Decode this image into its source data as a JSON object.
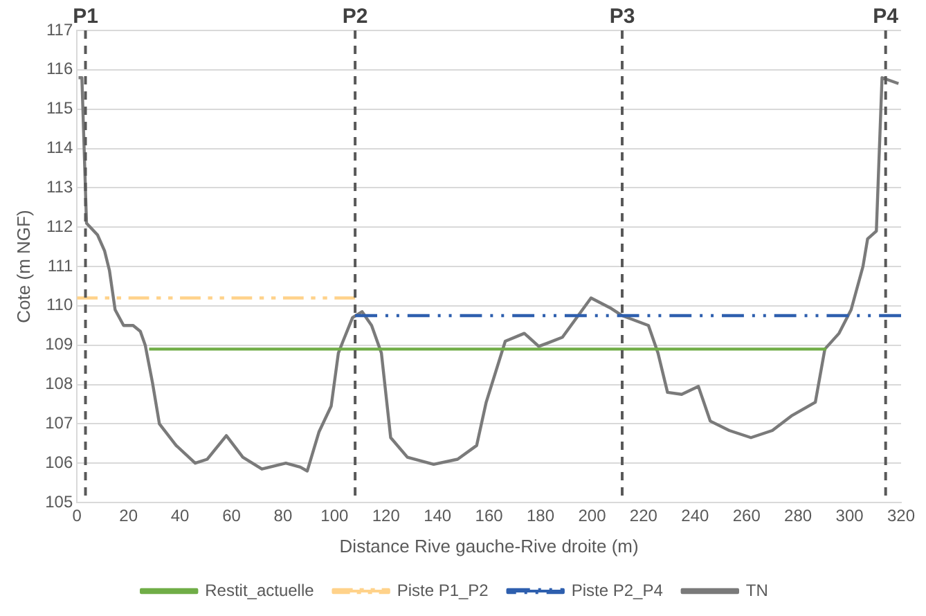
{
  "chart_data": {
    "type": "line",
    "xlabel": "Distance Rive gauche-Rive droite (m)",
    "ylabel": "Cote (m NGF)",
    "xlim": [
      0,
      320
    ],
    "xticks": [
      0,
      20,
      40,
      60,
      80,
      100,
      120,
      140,
      160,
      180,
      200,
      220,
      240,
      260,
      280,
      300,
      320
    ],
    "ylim": [
      105,
      117
    ],
    "yticks": [
      105,
      106,
      107,
      108,
      109,
      110,
      111,
      112,
      113,
      114,
      115,
      116,
      117
    ],
    "grid": "y",
    "legend": "bottom",
    "marker": "none",
    "series": [
      {
        "name": "Restit_actuelle",
        "color": "#70ad47",
        "line_style": "solid",
        "x": [
          28,
          291
        ],
        "values": [
          108.9,
          108.9
        ]
      },
      {
        "name": "Piste P1_P2",
        "color": "#ffd28a",
        "line_style": "dashed",
        "x": [
          0,
          108
        ],
        "values": [
          110.2,
          110.2
        ]
      },
      {
        "name": "Piste P2_P4",
        "color": "#2e5fae",
        "line_style": "dotted",
        "x": [
          108,
          320
        ],
        "values": [
          109.75,
          109.75
        ]
      },
      {
        "name": "TN",
        "color": "#7a7a7a",
        "line_style": "solid",
        "x": [
          0.6,
          1.9,
          3.7,
          8,
          10.7,
          12.6,
          14.8,
          18.1,
          21.8,
          24.6,
          26.5,
          29.3,
          32,
          38.5,
          45.9,
          50.6,
          58,
          64.4,
          71.8,
          81.1,
          86.7,
          89.4,
          94,
          98.7,
          101.5,
          103.3,
          107,
          110.7,
          114.4,
          118.2,
          121.8,
          128.3,
          138.5,
          147.8,
          155.2,
          158.9,
          166.3,
          173.7,
          179.3,
          182.6,
          188.5,
          199.6,
          207,
          211.7,
          221.9,
          225.6,
          229.3,
          234.8,
          241.3,
          245.9,
          253.3,
          261.7,
          270,
          277.4,
          286.7,
          290.4,
          295.9,
          300.6,
          305.2,
          307,
          310.4,
          312.6,
          319
        ],
        "values": [
          115.8,
          115.8,
          112.1,
          111.8,
          111.4,
          110.9,
          109.9,
          109.5,
          109.5,
          109.35,
          109,
          108.05,
          107,
          106.45,
          106,
          106.1,
          106.7,
          106.15,
          105.85,
          106,
          105.9,
          105.8,
          106.8,
          107.45,
          108.8,
          109.1,
          109.7,
          109.85,
          109.5,
          108.8,
          106.65,
          106.15,
          105.97,
          106.1,
          106.45,
          107.55,
          109.1,
          109.3,
          108.97,
          109.05,
          109.2,
          110.2,
          109.95,
          109.75,
          109.5,
          108.8,
          107.8,
          107.75,
          107.95,
          107.07,
          106.83,
          106.65,
          106.83,
          107.2,
          107.55,
          108.9,
          109.3,
          109.9,
          111,
          111.7,
          111.9,
          115.8,
          115.65
        ]
      }
    ],
    "ref_lines": [
      {
        "axis": "x",
        "value": 3.3,
        "label": "P1",
        "color": "#595959",
        "line_style": "dashed"
      },
      {
        "axis": "x",
        "value": 108,
        "label": "P2",
        "color": "#595959",
        "line_style": "dashed"
      },
      {
        "axis": "x",
        "value": 211.7,
        "label": "P3",
        "color": "#595959",
        "line_style": "dashed"
      },
      {
        "axis": "x",
        "value": 314,
        "label": "P4",
        "color": "#595959",
        "line_style": "dashed"
      }
    ]
  }
}
